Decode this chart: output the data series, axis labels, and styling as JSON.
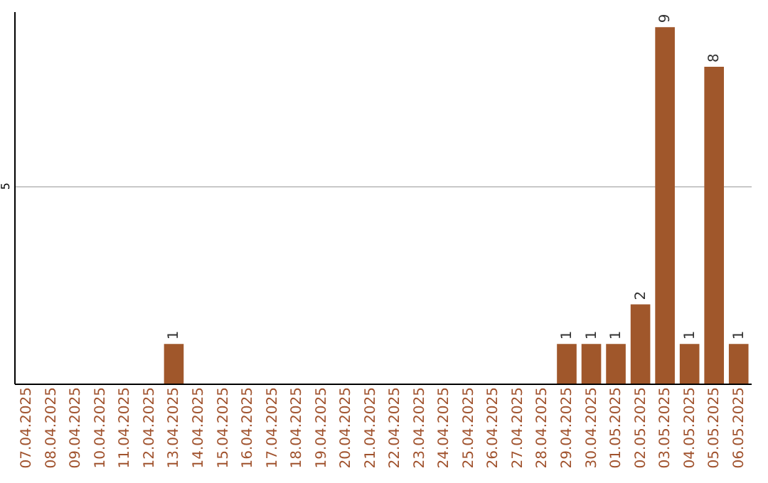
{
  "chart_data": {
    "type": "bar",
    "categories": [
      "07.04.2025",
      "08.04.2025",
      "09.04.2025",
      "10.04.2025",
      "11.04.2025",
      "12.04.2025",
      "13.04.2025",
      "14.04.2025",
      "15.04.2025",
      "16.04.2025",
      "17.04.2025",
      "18.04.2025",
      "19.04.2025",
      "20.04.2025",
      "21.04.2025",
      "22.04.2025",
      "23.04.2025",
      "24.04.2025",
      "25.04.2025",
      "26.04.2025",
      "27.04.2025",
      "28.04.2025",
      "29.04.2025",
      "30.04.2025",
      "01.05.2025",
      "02.05.2025",
      "03.05.2025",
      "04.05.2025",
      "05.05.2025",
      "06.05.2025"
    ],
    "values": [
      0,
      0,
      0,
      0,
      0,
      0,
      1,
      0,
      0,
      0,
      0,
      0,
      0,
      0,
      0,
      0,
      0,
      0,
      0,
      0,
      0,
      0,
      1,
      1,
      1,
      2,
      9,
      1,
      8,
      1
    ],
    "value_labels": [
      null,
      null,
      null,
      null,
      null,
      null,
      "1",
      null,
      null,
      null,
      null,
      null,
      null,
      null,
      null,
      null,
      null,
      null,
      null,
      null,
      null,
      null,
      "1",
      "1",
      "1",
      "2",
      "9",
      "1",
      "8",
      "1"
    ],
    "color": "#a0572b",
    "ylim": [
      0,
      9.4
    ],
    "yticks": [
      5
    ],
    "grid": "y"
  }
}
